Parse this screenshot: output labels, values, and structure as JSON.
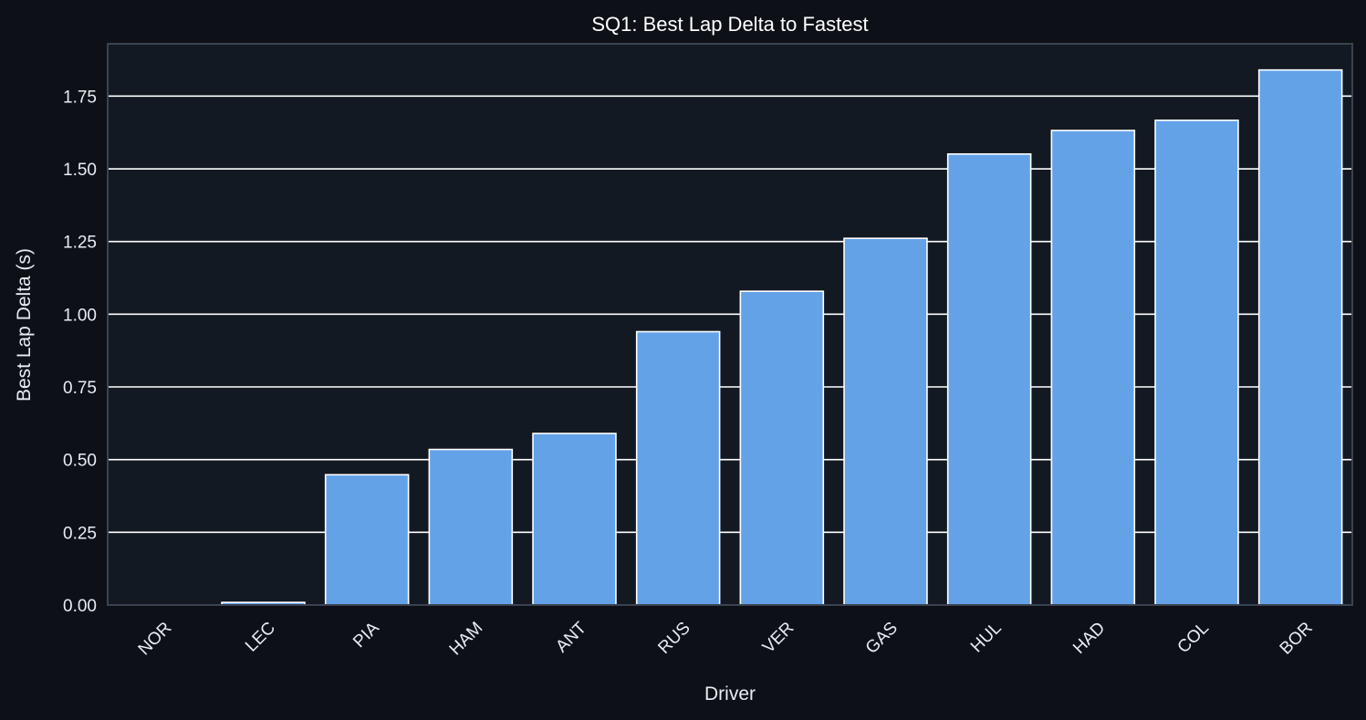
{
  "chart_data": {
    "type": "bar",
    "title": "SQ1: Best Lap Delta to Fastest",
    "xlabel": "Driver",
    "ylabel": "Best Lap Delta (s)",
    "categories": [
      "NOR",
      "LEC",
      "PIA",
      "HAM",
      "ANT",
      "RUS",
      "VER",
      "GAS",
      "HUL",
      "HAD",
      "COL",
      "BOR"
    ],
    "values": [
      0.0,
      0.009,
      0.448,
      0.535,
      0.59,
      0.94,
      1.079,
      1.261,
      1.551,
      1.632,
      1.667,
      1.84
    ],
    "ylim": [
      0,
      1.93
    ],
    "yticks": [
      "0.00",
      "0.25",
      "0.50",
      "0.75",
      "1.00",
      "1.25",
      "1.50",
      "1.75"
    ],
    "grid": true,
    "legend": "none"
  },
  "colors": {
    "figure_background": "#0d1117",
    "axes_background": "#131922",
    "bar_fill": "#64a2e8",
    "bar_edge": "#ffffff",
    "grid": "#ffffff",
    "spine": "#3a4350",
    "text": "#ffffff",
    "tick_text": "#e6edf3"
  }
}
